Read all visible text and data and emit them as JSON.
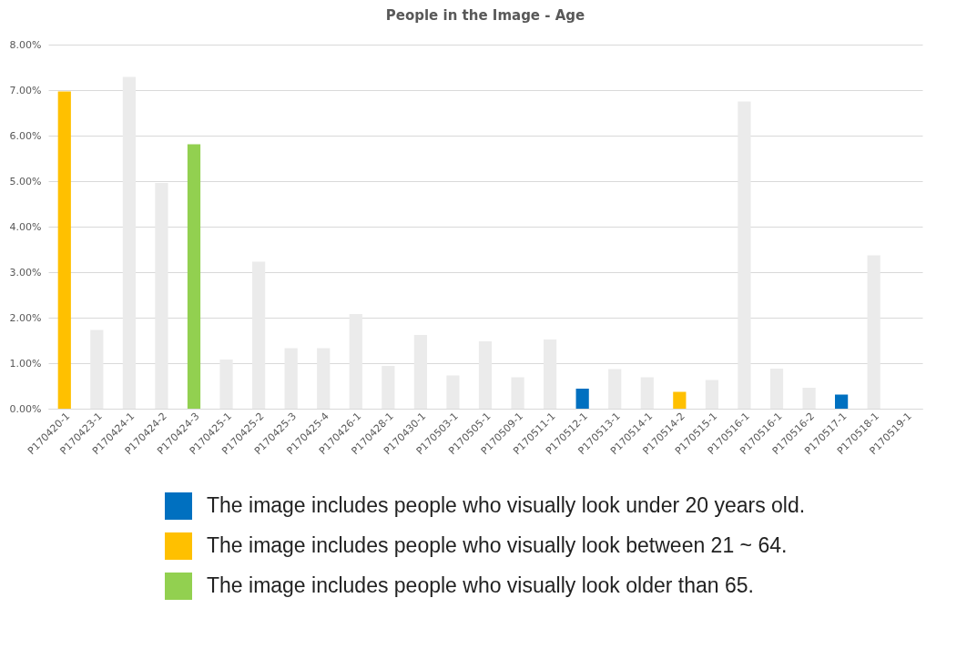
{
  "chart_data": {
    "type": "bar",
    "title": "People in the Image - Age",
    "categories": [
      "P170420-1",
      "P170423-1",
      "P170424-1",
      "P170424-2",
      "P170424-3",
      "P170425-1",
      "P170425-2",
      "P170425-3",
      "P170425-4",
      "P170426-1",
      "P170428-1",
      "P170430-1",
      "P170503-1",
      "P170505-1",
      "P170509-1",
      "P170511-1",
      "P170512-1",
      "P170513-1",
      "P170514-1",
      "P170514-2",
      "P170515-1",
      "P170516-1",
      "P170516-1",
      "P170516-2",
      "P170517-1",
      "P170518-1",
      "P170519-1"
    ],
    "series": [
      {
        "color": "#ebebeb",
        "values": [
          null,
          1.73,
          7.29,
          4.96,
          null,
          1.08,
          3.23,
          1.33,
          1.33,
          2.08,
          0.94,
          1.62,
          0.73,
          1.48,
          0.69,
          1.52,
          null,
          0.87,
          0.69,
          null,
          0.63,
          6.75,
          0.88,
          0.46,
          null,
          3.37,
          0
        ]
      },
      {
        "name": "The image includes people who visually look under 20 years old.",
        "color": "#0070c0",
        "values": [
          null,
          null,
          null,
          null,
          null,
          null,
          null,
          null,
          null,
          null,
          null,
          null,
          null,
          null,
          null,
          null,
          0.44,
          null,
          null,
          null,
          null,
          null,
          null,
          null,
          0.31,
          null,
          null
        ]
      },
      {
        "name": "The image includes people who visually look between 21 ~ 64.",
        "color": "#ffc000",
        "values": [
          6.97,
          null,
          null,
          null,
          null,
          null,
          null,
          null,
          null,
          null,
          null,
          null,
          null,
          null,
          null,
          null,
          null,
          null,
          null,
          0.37,
          null,
          null,
          null,
          null,
          null,
          null,
          null
        ]
      },
      {
        "name": "The image includes people who visually look older than 65.",
        "color": "#92d050",
        "values": [
          null,
          null,
          null,
          null,
          5.81,
          null,
          null,
          null,
          null,
          null,
          null,
          null,
          null,
          null,
          null,
          null,
          null,
          null,
          null,
          null,
          null,
          null,
          null,
          null,
          null,
          null,
          null
        ]
      }
    ],
    "ylim": [
      0,
      8
    ],
    "yticks": [
      {
        "value": 0,
        "label": "0.00%"
      },
      {
        "value": 1,
        "label": "1.00%"
      },
      {
        "value": 2,
        "label": "2.00%"
      },
      {
        "value": 3,
        "label": "3.00%"
      },
      {
        "value": 4,
        "label": "4.00%"
      },
      {
        "value": 5,
        "label": "5.00%"
      },
      {
        "value": 6,
        "label": "6.00%"
      },
      {
        "value": 7,
        "label": "7.00%"
      },
      {
        "value": 8,
        "label": "8.00%"
      }
    ],
    "grid": "y",
    "legend": "bottom"
  }
}
